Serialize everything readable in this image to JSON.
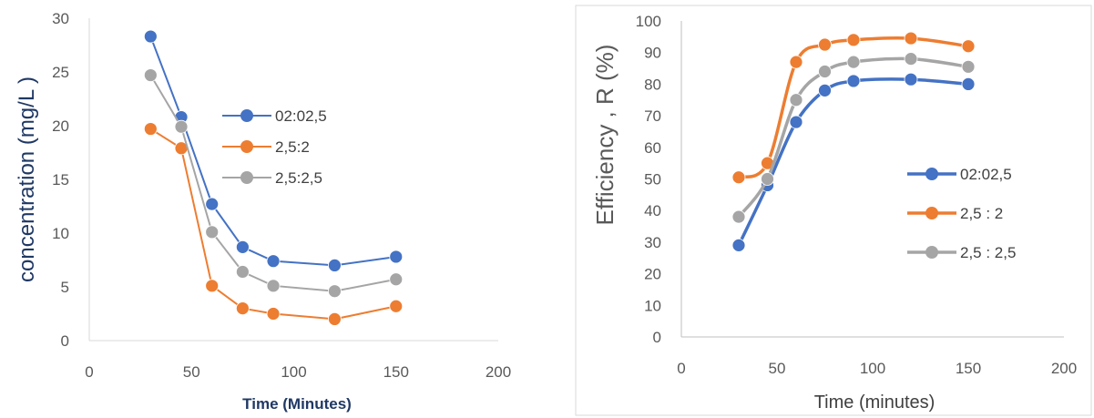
{
  "chart_data": [
    {
      "type": "line",
      "title": "",
      "xlabel": "Time (Minutes)",
      "ylabel": "concentration (mg/L )",
      "xlim": [
        0,
        200
      ],
      "ylim": [
        0,
        30
      ],
      "x_ticks": [
        "0",
        "50",
        "100",
        "150",
        "200"
      ],
      "y_ticks": [
        "0",
        "5",
        "10",
        "15",
        "20",
        "25",
        "30"
      ],
      "grid": false,
      "legend_position": "center-right",
      "x": [
        30,
        45,
        60,
        75,
        90,
        120,
        150
      ],
      "series": [
        {
          "name": "02:02,5",
          "color": "#4472C4",
          "values": [
            28.3,
            20.8,
            12.7,
            8.7,
            7.4,
            7.0,
            7.8
          ]
        },
        {
          "name": "2,5:2",
          "color": "#ED7D31",
          "values": [
            19.7,
            17.9,
            5.1,
            3.0,
            2.5,
            2.0,
            3.2
          ]
        },
        {
          "name": "2,5:2,5",
          "color": "#A5A5A5",
          "values": [
            24.7,
            19.9,
            10.1,
            6.4,
            5.1,
            4.6,
            5.7
          ]
        }
      ]
    },
    {
      "type": "line",
      "title": "",
      "xlabel": "Time (minutes)",
      "ylabel": "Efficiency , R (%)",
      "xlim": [
        0,
        200
      ],
      "ylim": [
        0,
        100
      ],
      "x_ticks": [
        "0",
        "50",
        "100",
        "150",
        "200"
      ],
      "y_ticks": [
        "0",
        "10",
        "20",
        "30",
        "40",
        "50",
        "60",
        "70",
        "80",
        "90",
        "100"
      ],
      "grid": false,
      "legend_position": "right",
      "x": [
        30,
        45,
        60,
        75,
        90,
        120,
        150
      ],
      "series": [
        {
          "name": "02:02,5",
          "color": "#4472C4",
          "values": [
            29,
            48,
            68,
            78,
            81,
            81.5,
            80
          ]
        },
        {
          "name": "2,5 : 2",
          "color": "#ED7D31",
          "values": [
            50.5,
            55,
            87,
            92.5,
            94,
            94.5,
            92
          ]
        },
        {
          "name": "2,5 : 2,5",
          "color": "#A5A5A5",
          "values": [
            38,
            50,
            75,
            84,
            87,
            88,
            85.5
          ]
        }
      ]
    }
  ]
}
